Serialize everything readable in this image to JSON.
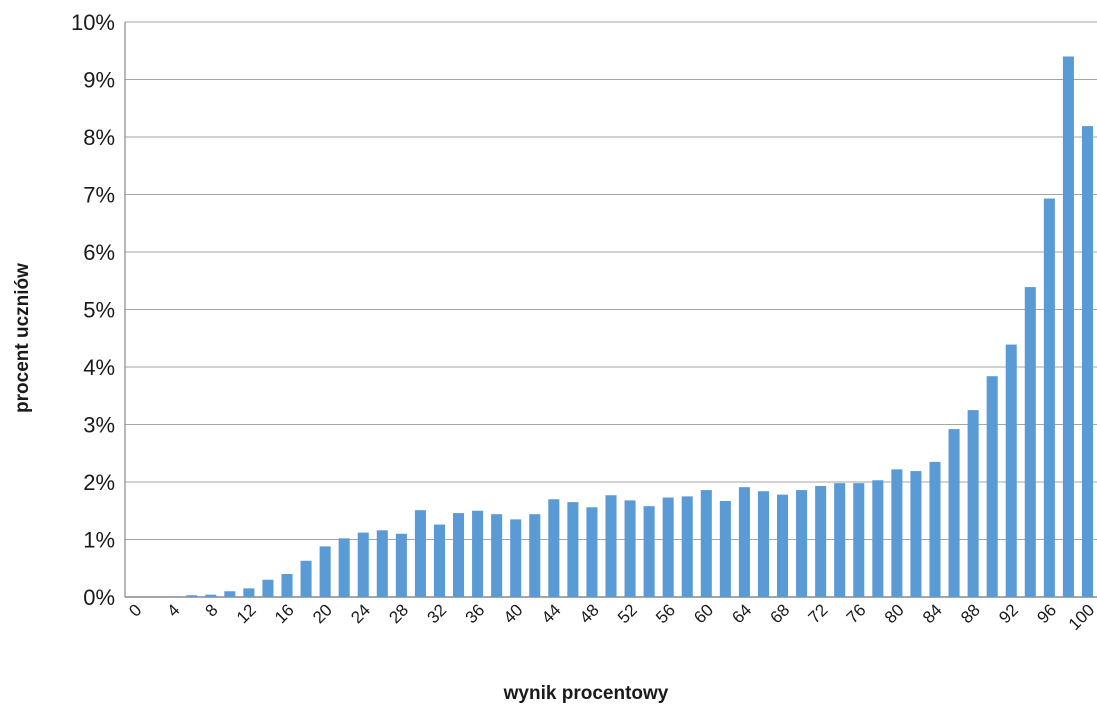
{
  "chart_data": {
    "type": "bar",
    "title": "",
    "xlabel": "wynik procentowy",
    "ylabel": "procent uczniów",
    "ylim": [
      0,
      10
    ],
    "y_ticks": [
      "0%",
      "1%",
      "2%",
      "3%",
      "4%",
      "5%",
      "6%",
      "7%",
      "8%",
      "9%",
      "10%"
    ],
    "x_tick_labels": [
      "0",
      "4",
      "8",
      "12",
      "16",
      "20",
      "24",
      "28",
      "32",
      "36",
      "40",
      "44",
      "48",
      "52",
      "56",
      "60",
      "64",
      "68",
      "72",
      "76",
      "80",
      "84",
      "88",
      "92",
      "96",
      "100"
    ],
    "grid": true,
    "bar_color": "#5b9bd5",
    "categories": [
      0,
      2,
      4,
      6,
      8,
      10,
      12,
      14,
      16,
      18,
      20,
      22,
      24,
      26,
      28,
      30,
      32,
      34,
      36,
      38,
      40,
      42,
      44,
      46,
      48,
      50,
      52,
      54,
      56,
      58,
      60,
      62,
      64,
      66,
      68,
      70,
      72,
      74,
      76,
      78,
      80,
      82,
      84,
      86,
      88,
      90,
      92,
      94,
      96,
      98,
      100
    ],
    "values": [
      0,
      0,
      0,
      0.03,
      0.04,
      0.1,
      0.15,
      0.3,
      0.4,
      0.63,
      0.88,
      1.02,
      1.12,
      1.16,
      1.1,
      1.51,
      1.26,
      1.46,
      1.5,
      1.44,
      1.35,
      1.44,
      1.7,
      1.65,
      1.56,
      1.77,
      1.68,
      1.58,
      1.73,
      1.75,
      1.86,
      1.67,
      1.91,
      1.84,
      1.78,
      1.86,
      1.93,
      1.98,
      1.98,
      2.03,
      2.22,
      2.19,
      2.35,
      2.92,
      3.25,
      3.84,
      4.39,
      5.39,
      6.93,
      9.4,
      8.19
    ]
  }
}
